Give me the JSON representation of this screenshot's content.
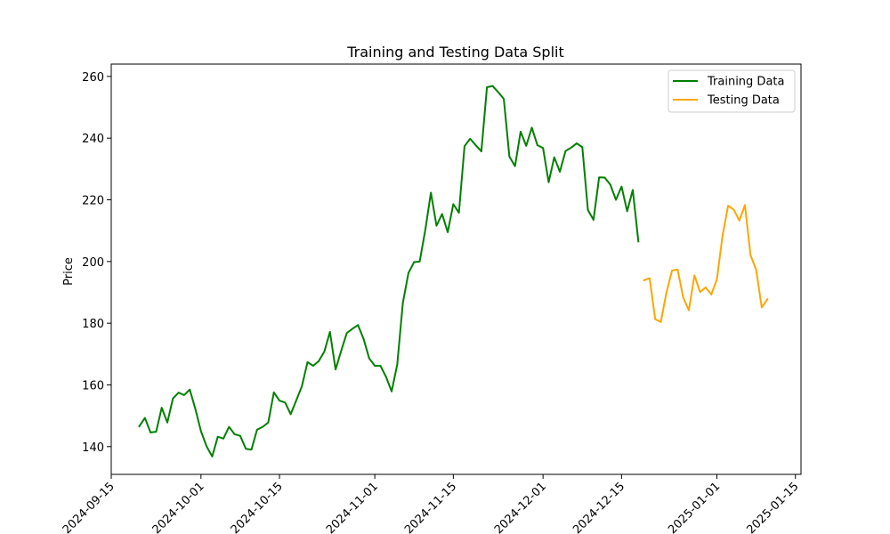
{
  "chart_data": {
    "type": "line",
    "title": "Training and Testing Data Split",
    "xlabel": "",
    "ylabel": "Price",
    "xlim": [
      "2024-09-15",
      "2025-01-16"
    ],
    "ylim": [
      131,
      264
    ],
    "x_ticks": [
      "2024-09-15",
      "2024-10-01",
      "2024-10-15",
      "2024-11-01",
      "2024-11-15",
      "2024-12-01",
      "2024-12-15",
      "2025-01-01",
      "2025-01-15"
    ],
    "y_ticks": [
      140,
      160,
      180,
      200,
      220,
      240,
      260
    ],
    "grid": false,
    "legend_position": "top-right",
    "series": [
      {
        "name": "Training Data",
        "color": "#008000",
        "points": [
          [
            "2024-09-20",
            146.6
          ],
          [
            "2024-09-21",
            149.3
          ],
          [
            "2024-09-22",
            144.6
          ],
          [
            "2024-09-23",
            144.8
          ],
          [
            "2024-09-24",
            152.6
          ],
          [
            "2024-09-25",
            147.8
          ],
          [
            "2024-09-26",
            155.6
          ],
          [
            "2024-09-27",
            157.5
          ],
          [
            "2024-09-28",
            156.7
          ],
          [
            "2024-09-29",
            158.5
          ],
          [
            "2024-09-30",
            152.2
          ],
          [
            "2024-10-01",
            145.0
          ],
          [
            "2024-10-02",
            140.1
          ],
          [
            "2024-10-03",
            136.8
          ],
          [
            "2024-10-04",
            143.2
          ],
          [
            "2024-10-05",
            142.6
          ],
          [
            "2024-10-06",
            146.4
          ],
          [
            "2024-10-07",
            144.0
          ],
          [
            "2024-10-08",
            143.5
          ],
          [
            "2024-10-09",
            139.3
          ],
          [
            "2024-10-10",
            139.0
          ],
          [
            "2024-10-11",
            145.5
          ],
          [
            "2024-10-12",
            146.4
          ],
          [
            "2024-10-13",
            147.8
          ],
          [
            "2024-10-14",
            157.6
          ],
          [
            "2024-10-15",
            154.9
          ],
          [
            "2024-10-16",
            154.3
          ],
          [
            "2024-10-17",
            150.5
          ],
          [
            "2024-10-18",
            155.0
          ],
          [
            "2024-10-19",
            159.6
          ],
          [
            "2024-10-20",
            167.4
          ],
          [
            "2024-10-21",
            166.2
          ],
          [
            "2024-10-22",
            167.7
          ],
          [
            "2024-10-23",
            170.8
          ],
          [
            "2024-10-24",
            177.2
          ],
          [
            "2024-10-25",
            165.0
          ],
          [
            "2024-10-26",
            171.0
          ],
          [
            "2024-10-27",
            176.8
          ],
          [
            "2024-10-28",
            178.2
          ],
          [
            "2024-10-29",
            179.4
          ],
          [
            "2024-10-30",
            174.9
          ],
          [
            "2024-10-31",
            168.6
          ],
          [
            "2024-11-01",
            166.2
          ],
          [
            "2024-11-02",
            166.2
          ],
          [
            "2024-11-03",
            162.6
          ],
          [
            "2024-11-04",
            157.9
          ],
          [
            "2024-11-05",
            166.6
          ],
          [
            "2024-11-06",
            186.6
          ],
          [
            "2024-11-07",
            196.3
          ],
          [
            "2024-11-08",
            199.8
          ],
          [
            "2024-11-09",
            200.0
          ],
          [
            "2024-11-10",
            210.2
          ],
          [
            "2024-11-11",
            222.3
          ],
          [
            "2024-11-12",
            211.6
          ],
          [
            "2024-11-13",
            215.4
          ],
          [
            "2024-11-14",
            209.5
          ],
          [
            "2024-11-15",
            218.6
          ],
          [
            "2024-11-16",
            215.8
          ],
          [
            "2024-11-17",
            237.4
          ],
          [
            "2024-11-18",
            239.8
          ],
          [
            "2024-11-19",
            237.7
          ],
          [
            "2024-11-20",
            235.7
          ],
          [
            "2024-11-21",
            256.5
          ],
          [
            "2024-11-22",
            256.9
          ],
          [
            "2024-11-23",
            254.9
          ],
          [
            "2024-11-24",
            252.7
          ],
          [
            "2024-11-25",
            234.0
          ],
          [
            "2024-11-26",
            230.9
          ],
          [
            "2024-11-27",
            242.1
          ],
          [
            "2024-11-28",
            237.5
          ],
          [
            "2024-11-29",
            243.4
          ],
          [
            "2024-11-30",
            237.7
          ],
          [
            "2024-12-01",
            236.8
          ],
          [
            "2024-12-02",
            225.7
          ],
          [
            "2024-12-03",
            233.8
          ],
          [
            "2024-12-04",
            229.1
          ],
          [
            "2024-12-05",
            235.8
          ],
          [
            "2024-12-06",
            236.9
          ],
          [
            "2024-12-07",
            238.3
          ],
          [
            "2024-12-08",
            237.1
          ],
          [
            "2024-12-09",
            216.7
          ],
          [
            "2024-12-10",
            213.5
          ],
          [
            "2024-12-11",
            227.3
          ],
          [
            "2024-12-12",
            227.2
          ],
          [
            "2024-12-13",
            224.9
          ],
          [
            "2024-12-14",
            220.0
          ],
          [
            "2024-12-15",
            224.3
          ],
          [
            "2024-12-16",
            216.3
          ],
          [
            "2024-12-17",
            223.2
          ],
          [
            "2024-12-18",
            206.5
          ]
        ]
      },
      {
        "name": "Testing Data",
        "color": "#ffa500",
        "points": [
          [
            "2024-12-19",
            193.9
          ],
          [
            "2024-12-20",
            194.6
          ],
          [
            "2024-12-21",
            181.3
          ],
          [
            "2024-12-22",
            180.4
          ],
          [
            "2024-12-23",
            189.9
          ],
          [
            "2024-12-24",
            197.1
          ],
          [
            "2024-12-25",
            197.4
          ],
          [
            "2024-12-26",
            188.3
          ],
          [
            "2024-12-27",
            184.2
          ],
          [
            "2024-12-28",
            195.5
          ],
          [
            "2024-12-29",
            190.1
          ],
          [
            "2024-12-30",
            191.6
          ],
          [
            "2024-12-31",
            189.3
          ],
          [
            "2025-01-01",
            194.2
          ],
          [
            "2025-01-02",
            208.3
          ],
          [
            "2025-01-03",
            218.1
          ],
          [
            "2025-01-04",
            216.8
          ],
          [
            "2025-01-05",
            213.3
          ],
          [
            "2025-01-06",
            218.3
          ],
          [
            "2025-01-07",
            202.0
          ],
          [
            "2025-01-08",
            197.4
          ],
          [
            "2025-01-09",
            185.1
          ],
          [
            "2025-01-10",
            187.8
          ]
        ]
      }
    ]
  }
}
